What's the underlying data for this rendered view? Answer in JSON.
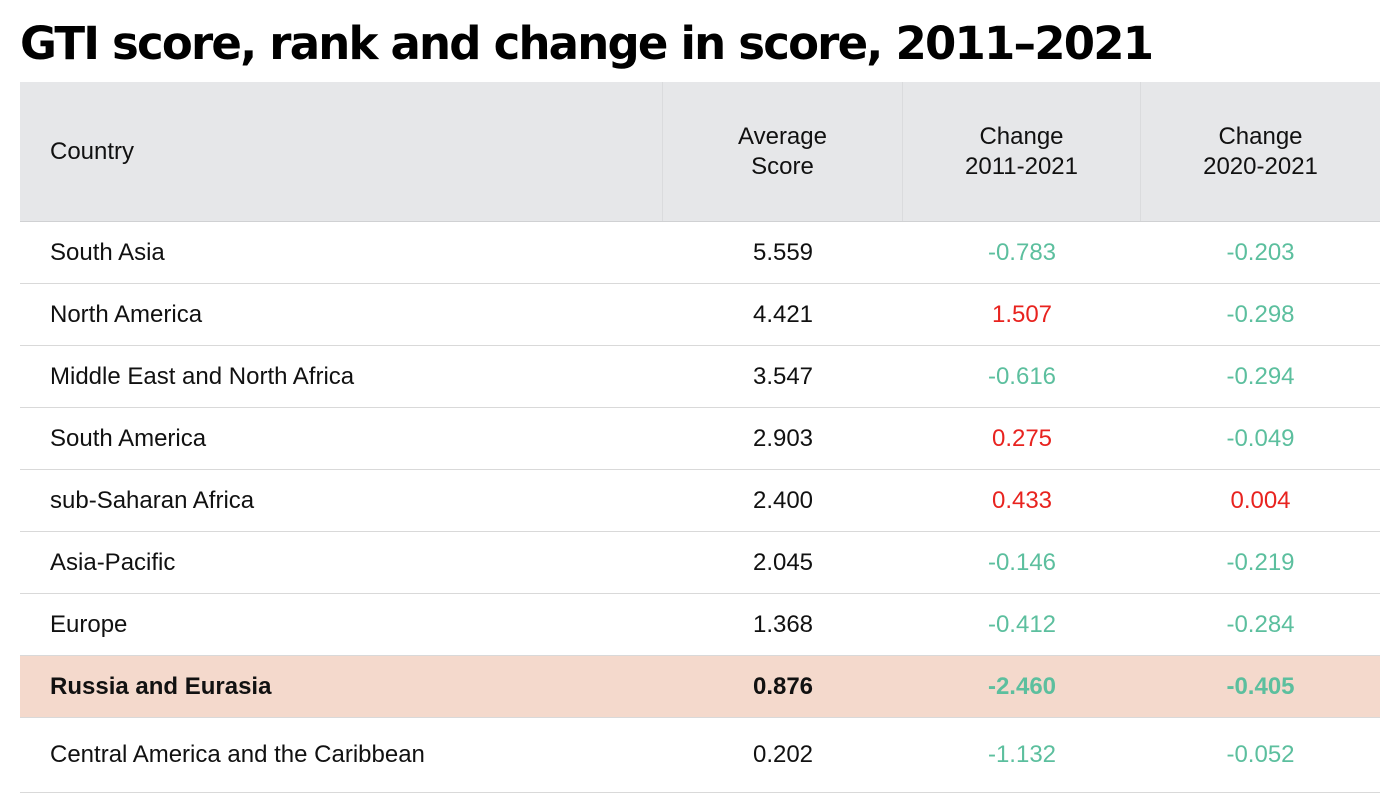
{
  "title": "GTI score, rank and change in score, 2011–2021",
  "colors": {
    "decrease": "#5cbf9e",
    "increase": "#e8231f",
    "highlight_row": "#f4d9cc",
    "header_bg": "#e6e7e9"
  },
  "chart_data": {
    "type": "table",
    "title": "GTI score, rank and change in score, 2011–2021",
    "columns": [
      {
        "key": "country",
        "lines": [
          "Country"
        ]
      },
      {
        "key": "avg",
        "lines": [
          "Average",
          "Score"
        ]
      },
      {
        "key": "ch1121",
        "lines": [
          "Change",
          "2011-2021"
        ]
      },
      {
        "key": "ch2021",
        "lines": [
          "Change",
          "2020-2021"
        ]
      }
    ],
    "rows": [
      {
        "country": "South Asia",
        "avg": "5.559",
        "ch1121": "-0.783",
        "ch2021": "-0.203"
      },
      {
        "country": "North America",
        "avg": "4.421",
        "ch1121": "1.507",
        "ch2021": "-0.298"
      },
      {
        "country": "Middle East and North Africa",
        "avg": "3.547",
        "ch1121": "-0.616",
        "ch2021": "-0.294"
      },
      {
        "country": "South America",
        "avg": "2.903",
        "ch1121": "0.275",
        "ch2021": "-0.049"
      },
      {
        "country": "sub-Saharan Africa",
        "avg": "2.400",
        "ch1121": "0.433",
        "ch2021": "0.004"
      },
      {
        "country": "Asia-Pacific",
        "avg": "2.045",
        "ch1121": "-0.146",
        "ch2021": "-0.219"
      },
      {
        "country": "Europe",
        "avg": "1.368",
        "ch1121": "-0.412",
        "ch2021": "-0.284"
      },
      {
        "country": "Russia and Eurasia",
        "avg": "0.876",
        "ch1121": "-2.460",
        "ch2021": "-0.405",
        "highlighted": true
      },
      {
        "country": "Central America and the Caribbean",
        "avg": "0.202",
        "ch1121": "-1.132",
        "ch2021": "-0.052"
      }
    ]
  }
}
